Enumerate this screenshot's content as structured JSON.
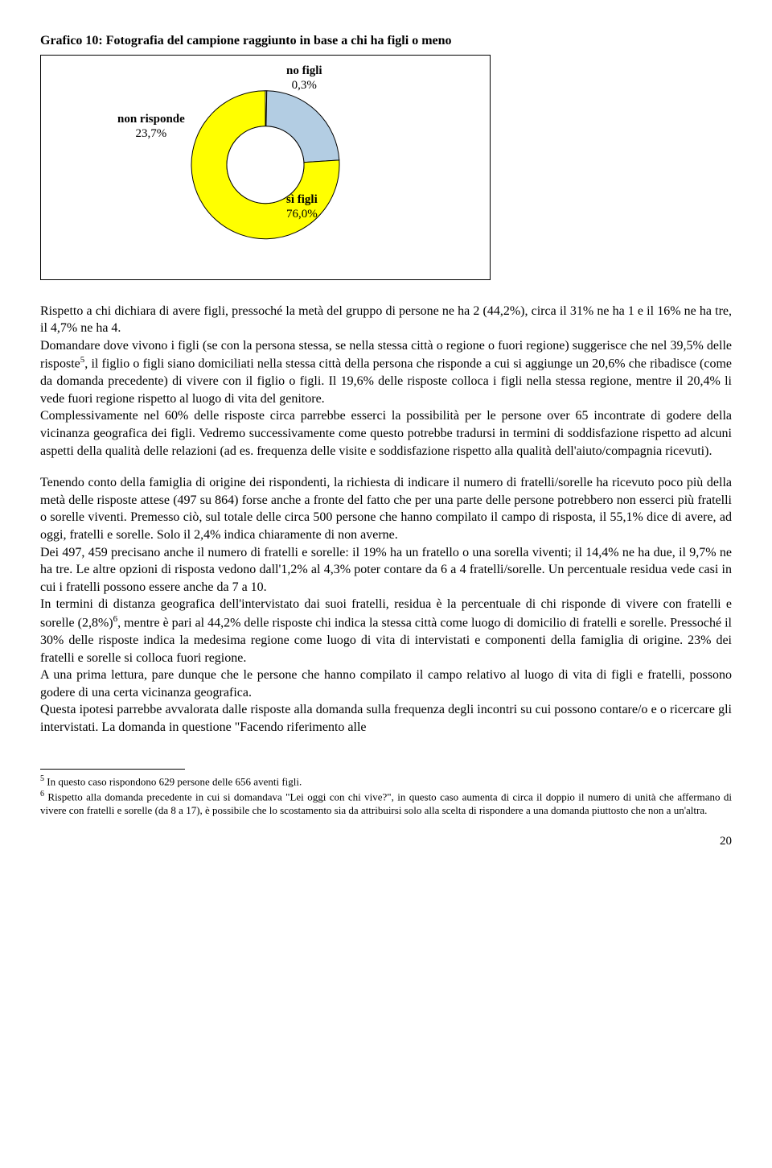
{
  "chart": {
    "title": "Grafico 10: Fotografia del campione raggiunto in base a chi ha figli o meno",
    "type": "donut",
    "slices": [
      {
        "label": "no figli",
        "pct": "0,3%",
        "value": 0.3,
        "color": "#ffffff"
      },
      {
        "label": "non risponde",
        "pct": "23,7%",
        "value": 23.7,
        "color": "#b3cde3"
      },
      {
        "label": "sì figli",
        "pct": "76,0%",
        "value": 76.0,
        "color": "#ffff00"
      }
    ],
    "outer_radius": 92,
    "inner_radius": 48,
    "border_color": "#000000",
    "background_color": "#ffffff",
    "label_fontsize": 15,
    "label_fontweight": "bold"
  },
  "body": {
    "p1": "Rispetto a chi dichiara di avere figli, pressoché la metà del gruppo di persone ne ha 2 (44,2%), circa il 31% ne ha 1 e il 16% ne ha tre, il 4,7% ne ha 4.",
    "p2a": "Domandare dove vivono i figli (se con la persona stessa, se nella stessa città o regione o fuori regione) suggerisce che nel 39,5% delle risposte",
    "p2b": ", il figlio o figli siano domiciliati nella stessa città della persona che risponde a cui si aggiunge un 20,6% che ribadisce (come da domanda precedente) di vivere con il figlio o figli. Il 19,6% delle risposte colloca i figli nella stessa regione, mentre il 20,4% li vede fuori regione rispetto al luogo di vita del genitore.",
    "p3": "Complessivamente nel 60% delle risposte circa parrebbe esserci la possibilità per le persone over 65 incontrate di godere della vicinanza geografica dei figli. Vedremo successivamente come questo potrebbe tradursi in termini di soddisfazione rispetto ad alcuni aspetti della qualità delle relazioni (ad es. frequenza delle visite e soddisfazione rispetto alla qualità dell'aiuto/compagnia ricevuti).",
    "p4": "Tenendo conto della famiglia di origine dei rispondenti, la richiesta di indicare il numero di fratelli/sorelle ha ricevuto poco più della metà delle risposte attese (497 su 864) forse anche a fronte del fatto che per una parte delle persone potrebbero non esserci più fratelli o sorelle viventi. Premesso ciò, sul totale delle circa 500 persone che hanno compilato il campo di risposta, il 55,1% dice di avere, ad oggi, fratelli e sorelle. Solo il 2,4% indica chiaramente di non averne.",
    "p5": "Dei 497, 459 precisano anche il numero di fratelli e sorelle: il 19% ha un fratello o una sorella viventi; il 14,4% ne ha due, il 9,7% ne ha tre. Le altre opzioni di risposta vedono dall'1,2% al 4,3% poter contare da 6 a 4 fratelli/sorelle. Un percentuale residua vede casi in cui i fratelli possono essere anche da 7 a 10.",
    "p6a": "In termini di distanza geografica dell'intervistato dai suoi fratelli, residua è la percentuale di chi risponde di vivere con fratelli e sorelle (2,8%)",
    "p6b": ", mentre è pari al 44,2% delle risposte chi indica la stessa città come luogo di domicilio di fratelli e sorelle. Pressoché il 30% delle risposte indica la medesima regione come luogo di vita di intervistati e componenti della famiglia di origine. 23% dei fratelli e sorelle si colloca fuori regione.",
    "p7": "A una prima lettura, pare dunque che le persone che hanno compilato il campo relativo al luogo di vita di figli e fratelli, possono godere di una certa vicinanza geografica.",
    "p8": "Questa ipotesi parrebbe avvalorata dalle risposte alla domanda sulla frequenza degli incontri su cui possono contare/o e o ricercare gli intervistati. La domanda in questione \"Facendo riferimento alle"
  },
  "footnotes": {
    "f5_mark": "5",
    "f5_text": " In questo caso rispondono 629 persone delle 656 aventi figli.",
    "f6_mark": "6",
    "f6_text": " Rispetto alla domanda precedente in cui si domandava \"Lei oggi con chi vive?\", in questo caso aumenta di circa il doppio il numero di unità che affermano di vivere con fratelli e sorelle (da 8 a 17), è possibile che lo scostamento sia da attribuirsi solo alla scelta di rispondere a una domanda piuttosto che non a un'altra."
  },
  "pagenum": "20"
}
